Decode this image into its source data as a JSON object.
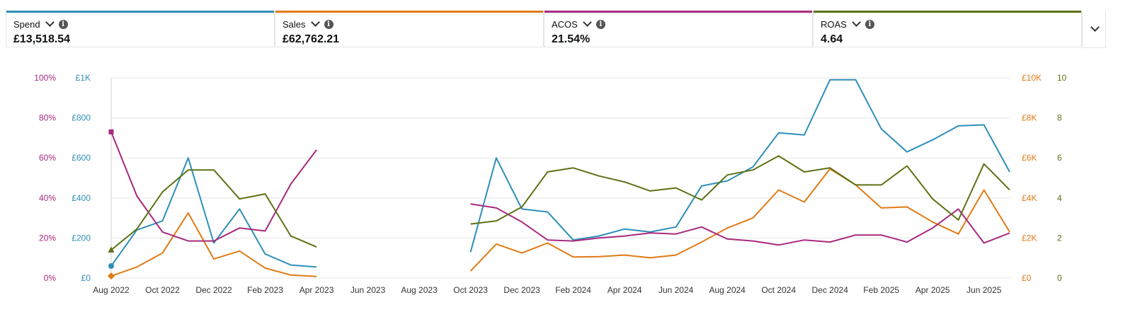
{
  "metrics": [
    {
      "label": "Spend",
      "value": "£13,518.54",
      "color": "#2e8fb9"
    },
    {
      "label": "Sales",
      "value": "£62,762.21",
      "color": "#e07b16"
    },
    {
      "label": "ACOS",
      "value": "21.54%",
      "color": "#a8297e"
    },
    {
      "label": "ROAS",
      "value": "4.64",
      "color": "#5d7215"
    }
  ],
  "icons": {
    "info": "info-icon",
    "dropdown": "chevron-down-icon",
    "expand": "chevron-down-icon"
  },
  "chart_data": {
    "type": "line",
    "x": [
      "Aug 2022",
      "Sep 2022",
      "Oct 2022",
      "Nov 2022",
      "Dec 2022",
      "Jan 2023",
      "Feb 2023",
      "Mar 2023",
      "Apr 2023",
      "May 2023",
      "Jun 2023",
      "Jul 2023",
      "Aug 2023",
      "Sep 2023",
      "Oct 2023",
      "Nov 2023",
      "Dec 2023",
      "Jan 2024",
      "Feb 2024",
      "Mar 2024",
      "Apr 2024",
      "May 2024",
      "Jun 2024",
      "Jul 2024",
      "Aug 2024",
      "Sep 2024",
      "Oct 2024",
      "Nov 2024",
      "Dec 2024",
      "Jan 2025",
      "Feb 2025",
      "Mar 2025",
      "Apr 2025",
      "May 2025",
      "Jun 2025",
      "Jul 2025"
    ],
    "x_tick_labels": [
      "Aug 2022",
      "Oct 2022",
      "Dec 2022",
      "Feb 2023",
      "Apr 2023",
      "Jun 2023",
      "Aug 2023",
      "Oct 2023",
      "Dec 2023",
      "Feb 2024",
      "Apr 2024",
      "Jun 2024",
      "Aug 2024",
      "Oct 2024",
      "Dec 2024",
      "Feb 2025",
      "Apr 2025",
      "Jun 2025"
    ],
    "axes": {
      "acos": {
        "side": "left-outer",
        "ticks": [
          "0%",
          "20%",
          "40%",
          "60%",
          "80%",
          "100%"
        ],
        "range": [
          0,
          100
        ],
        "color": "#a8297e"
      },
      "spend": {
        "side": "left-inner",
        "ticks": [
          "£0",
          "£200",
          "£400",
          "£600",
          "£800",
          "£1K"
        ],
        "range": [
          0,
          1000
        ],
        "color": "#2e8fb9"
      },
      "sales": {
        "side": "right-inner",
        "ticks": [
          "£0",
          "£2K",
          "£4K",
          "£6K",
          "£8K",
          "£10K"
        ],
        "range": [
          0,
          10000
        ],
        "color": "#e07b16"
      },
      "roas": {
        "side": "right-outer",
        "ticks": [
          "0",
          "2",
          "4",
          "6",
          "8",
          "10"
        ],
        "range": [
          0,
          10
        ],
        "color": "#5d7215"
      }
    },
    "grid": true,
    "legend": "none",
    "series": [
      {
        "axis": "spend",
        "color": "#2e8fb9",
        "marker": "circle",
        "values": [
          60,
          240,
          285,
          600,
          175,
          345,
          120,
          65,
          55,
          null,
          null,
          null,
          null,
          null,
          130,
          600,
          345,
          330,
          190,
          210,
          245,
          230,
          255,
          460,
          485,
          555,
          725,
          715,
          990,
          990,
          745,
          630,
          690,
          760,
          765,
          530
        ]
      },
      {
        "axis": "sales",
        "color": "#e07b16",
        "marker": "diamond",
        "values": [
          100,
          550,
          1250,
          3250,
          950,
          1350,
          500,
          150,
          80,
          null,
          null,
          null,
          null,
          null,
          350,
          1700,
          1250,
          1750,
          1050,
          1070,
          1150,
          1010,
          1150,
          1800,
          2500,
          3000,
          4400,
          3800,
          5450,
          4650,
          3500,
          3550,
          2800,
          2200,
          4400,
          2300
        ]
      },
      {
        "axis": "acos",
        "color": "#a8297e",
        "marker": "square",
        "values": [
          73,
          41,
          23,
          18.5,
          18.5,
          25,
          23.5,
          47,
          64,
          null,
          null,
          null,
          null,
          null,
          37,
          35,
          28,
          19,
          18.5,
          20,
          21,
          22.5,
          22,
          25.5,
          19.5,
          18.5,
          16.5,
          19,
          18,
          21.5,
          21.5,
          18,
          25,
          34.5,
          17.5,
          22.5
        ]
      },
      {
        "axis": "roas",
        "color": "#5d7215",
        "marker": "triangle",
        "values": [
          1.4,
          2.45,
          4.3,
          5.4,
          5.4,
          3.95,
          4.2,
          2.1,
          1.55,
          null,
          null,
          null,
          null,
          null,
          2.7,
          2.85,
          3.55,
          5.3,
          5.5,
          5.1,
          4.8,
          4.35,
          4.5,
          3.9,
          5.15,
          5.4,
          6.1,
          5.3,
          5.5,
          4.65,
          4.65,
          5.6,
          3.95,
          2.9,
          5.7,
          4.4
        ]
      }
    ]
  }
}
